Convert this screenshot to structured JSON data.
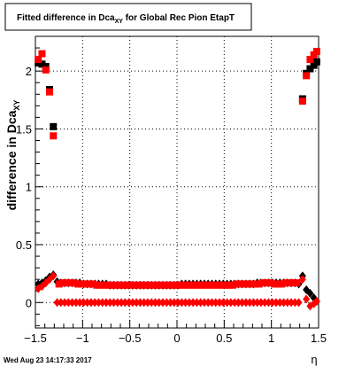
{
  "title": {
    "main": "Fitted difference in Dca",
    "sub": "XY",
    "rest": " for Global Rec Pion EtapT"
  },
  "footer": {
    "timestamp": "Wed Aug 23 14:17:33 2017"
  },
  "axes": {
    "xlabel": "η",
    "ylabel_main": "difference in Dca",
    "ylabel_sub": "XY"
  },
  "colors": {
    "black_series": "#000000",
    "red_series": "#ff0000",
    "grid": "#000000"
  },
  "chart_data": {
    "type": "scatter",
    "xlim": [
      -1.5,
      1.5
    ],
    "ylim": [
      -0.22,
      2.3
    ],
    "grid": true,
    "x_ticks": [
      {
        "v": -1.5,
        "label": "−1.5"
      },
      {
        "v": -1,
        "label": "−1"
      },
      {
        "v": -0.5,
        "label": "−0.5"
      },
      {
        "v": 0,
        "label": "0"
      },
      {
        "v": 0.5,
        "label": "0.5"
      },
      {
        "v": 1,
        "label": "1"
      },
      {
        "v": 1.5,
        "label": "1.5"
      }
    ],
    "y_ticks": [
      {
        "v": 0,
        "label": "0"
      },
      {
        "v": 0.5,
        "label": "0.5"
      },
      {
        "v": 1,
        "label": "1"
      },
      {
        "v": 1.5,
        "label": "1.5"
      },
      {
        "v": 2,
        "label": "2"
      }
    ],
    "series": [
      {
        "marker": "square",
        "color": "#000000",
        "points": [
          [
            -1.47,
            2.07
          ],
          [
            -1.43,
            2.06
          ],
          [
            -1.39,
            2.04
          ],
          [
            -1.35,
            1.84
          ],
          [
            -1.31,
            1.52
          ],
          [
            1.33,
            1.76
          ],
          [
            1.37,
            1.98
          ],
          [
            1.41,
            2.02
          ],
          [
            1.45,
            2.05
          ],
          [
            1.48,
            2.08
          ]
        ]
      },
      {
        "marker": "square",
        "color": "#ff0000",
        "points": [
          [
            -1.47,
            2.1
          ],
          [
            -1.43,
            2.15
          ],
          [
            -1.39,
            2.01
          ],
          [
            -1.35,
            1.82
          ],
          [
            -1.31,
            1.44
          ],
          [
            1.33,
            1.74
          ],
          [
            1.37,
            1.96
          ],
          [
            1.41,
            2.1
          ],
          [
            1.45,
            2.14
          ],
          [
            1.48,
            2.17
          ]
        ]
      },
      {
        "marker": "diamond",
        "color": "#000000",
        "points": [
          [
            -1.47,
            0.16
          ],
          [
            -1.43,
            0.17
          ],
          [
            -1.39,
            0.19
          ],
          [
            -1.35,
            0.22
          ],
          [
            -1.31,
            0.24
          ],
          [
            -1.27,
            0.18
          ],
          [
            -1.23,
            0.17
          ],
          [
            -1.19,
            0.17
          ],
          [
            -1.15,
            0.17
          ],
          [
            -1.11,
            0.17
          ],
          [
            -1.07,
            0.17
          ],
          [
            -1.03,
            0.17
          ],
          [
            -0.99,
            0.16
          ],
          [
            -0.95,
            0.16
          ],
          [
            -0.91,
            0.16
          ],
          [
            -0.87,
            0.16
          ],
          [
            -0.83,
            0.16
          ],
          [
            -0.79,
            0.16
          ],
          [
            -0.75,
            0.16
          ],
          [
            -0.71,
            0.15
          ],
          [
            -0.67,
            0.15
          ],
          [
            -0.63,
            0.15
          ],
          [
            -0.59,
            0.15
          ],
          [
            -0.55,
            0.15
          ],
          [
            -0.51,
            0.15
          ],
          [
            -0.47,
            0.15
          ],
          [
            -0.43,
            0.15
          ],
          [
            -0.39,
            0.15
          ],
          [
            -0.35,
            0.15
          ],
          [
            -0.31,
            0.15
          ],
          [
            -0.27,
            0.15
          ],
          [
            -0.23,
            0.15
          ],
          [
            -0.19,
            0.15
          ],
          [
            -0.15,
            0.15
          ],
          [
            -0.11,
            0.15
          ],
          [
            -0.07,
            0.15
          ],
          [
            -0.03,
            0.15
          ],
          [
            0.01,
            0.15
          ],
          [
            0.05,
            0.16
          ],
          [
            0.09,
            0.16
          ],
          [
            0.13,
            0.16
          ],
          [
            0.17,
            0.16
          ],
          [
            0.21,
            0.16
          ],
          [
            0.25,
            0.16
          ],
          [
            0.29,
            0.16
          ],
          [
            0.33,
            0.16
          ],
          [
            0.37,
            0.16
          ],
          [
            0.41,
            0.16
          ],
          [
            0.45,
            0.16
          ],
          [
            0.49,
            0.16
          ],
          [
            0.53,
            0.16
          ],
          [
            0.57,
            0.16
          ],
          [
            0.61,
            0.16
          ],
          [
            0.65,
            0.16
          ],
          [
            0.69,
            0.16
          ],
          [
            0.73,
            0.16
          ],
          [
            0.77,
            0.16
          ],
          [
            0.81,
            0.16
          ],
          [
            0.85,
            0.17
          ],
          [
            0.89,
            0.17
          ],
          [
            0.93,
            0.17
          ],
          [
            0.97,
            0.17
          ],
          [
            1.01,
            0.17
          ],
          [
            1.05,
            0.17
          ],
          [
            1.09,
            0.17
          ],
          [
            1.13,
            0.17
          ],
          [
            1.17,
            0.17
          ],
          [
            1.21,
            0.17
          ],
          [
            1.25,
            0.17
          ],
          [
            1.29,
            0.16
          ],
          [
            1.33,
            0.23
          ],
          [
            1.37,
            0.11
          ],
          [
            1.41,
            0.08
          ],
          [
            1.45,
            0.04
          ],
          [
            1.48,
            0.01
          ]
        ]
      },
      {
        "marker": "diamond",
        "color": "#ff0000",
        "points": [
          [
            -1.47,
            0.12
          ],
          [
            -1.43,
            0.14
          ],
          [
            -1.39,
            0.17
          ],
          [
            -1.35,
            0.2
          ],
          [
            -1.31,
            0.23
          ],
          [
            -1.27,
            0.0
          ],
          [
            -1.23,
            0.0
          ],
          [
            -1.19,
            0.0
          ],
          [
            -1.15,
            0.0
          ],
          [
            -1.11,
            0.0
          ],
          [
            -1.07,
            0.0
          ],
          [
            -1.03,
            0.0
          ],
          [
            -0.99,
            0.0
          ],
          [
            -0.95,
            0.0
          ],
          [
            -0.91,
            0.0
          ],
          [
            -0.87,
            0.0
          ],
          [
            -0.83,
            0.0
          ],
          [
            -0.79,
            0.0
          ],
          [
            -0.75,
            0.0
          ],
          [
            -0.71,
            0.0
          ],
          [
            -0.67,
            0.0
          ],
          [
            -0.63,
            0.0
          ],
          [
            -0.59,
            0.0
          ],
          [
            -0.55,
            0.0
          ],
          [
            -0.51,
            0.0
          ],
          [
            -0.47,
            0.0
          ],
          [
            -0.43,
            0.0
          ],
          [
            -0.39,
            0.0
          ],
          [
            -0.35,
            0.0
          ],
          [
            -0.31,
            0.0
          ],
          [
            -0.27,
            0.0
          ],
          [
            -0.23,
            0.0
          ],
          [
            -0.19,
            0.0
          ],
          [
            -0.15,
            0.0
          ],
          [
            -0.11,
            0.0
          ],
          [
            -0.07,
            0.0
          ],
          [
            -0.03,
            0.0
          ],
          [
            0.01,
            0.0
          ],
          [
            0.05,
            0.0
          ],
          [
            0.09,
            0.0
          ],
          [
            0.13,
            0.0
          ],
          [
            0.17,
            0.0
          ],
          [
            0.21,
            0.0
          ],
          [
            0.25,
            0.0
          ],
          [
            0.29,
            0.0
          ],
          [
            0.33,
            0.0
          ],
          [
            0.37,
            0.0
          ],
          [
            0.41,
            0.0
          ],
          [
            0.45,
            0.0
          ],
          [
            0.49,
            0.0
          ],
          [
            0.53,
            0.0
          ],
          [
            0.57,
            0.0
          ],
          [
            0.61,
            0.0
          ],
          [
            0.65,
            0.0
          ],
          [
            0.69,
            0.0
          ],
          [
            0.73,
            0.0
          ],
          [
            0.77,
            0.0
          ],
          [
            0.81,
            0.0
          ],
          [
            0.85,
            0.0
          ],
          [
            0.89,
            0.0
          ],
          [
            0.93,
            0.0
          ],
          [
            0.97,
            0.0
          ],
          [
            1.01,
            0.0
          ],
          [
            1.05,
            0.0
          ],
          [
            1.09,
            0.0
          ],
          [
            1.13,
            0.0
          ],
          [
            1.17,
            0.0
          ],
          [
            1.21,
            0.0
          ],
          [
            1.25,
            0.0
          ],
          [
            1.29,
            0.0
          ],
          [
            1.33,
            0.2
          ],
          [
            1.37,
            0.03
          ],
          [
            1.41,
            -0.03
          ],
          [
            1.45,
            -0.01
          ],
          [
            1.48,
            0.01
          ]
        ]
      },
      {
        "marker": "square",
        "color": "#ff0000",
        "points": [
          [
            -1.25,
            0.16
          ],
          [
            -1.21,
            0.17
          ],
          [
            -1.17,
            0.17
          ],
          [
            -1.13,
            0.17
          ],
          [
            -1.09,
            0.17
          ],
          [
            -1.05,
            0.16
          ],
          [
            -1.01,
            0.16
          ],
          [
            -0.97,
            0.16
          ],
          [
            -0.93,
            0.16
          ],
          [
            -0.89,
            0.16
          ],
          [
            -0.85,
            0.15
          ],
          [
            -0.81,
            0.15
          ],
          [
            -0.77,
            0.15
          ],
          [
            -0.73,
            0.15
          ],
          [
            -0.69,
            0.15
          ],
          [
            -0.65,
            0.15
          ],
          [
            -0.61,
            0.15
          ],
          [
            -0.57,
            0.15
          ],
          [
            -0.53,
            0.15
          ],
          [
            -0.49,
            0.15
          ],
          [
            -0.45,
            0.15
          ],
          [
            -0.41,
            0.15
          ],
          [
            -0.37,
            0.15
          ],
          [
            -0.33,
            0.15
          ],
          [
            -0.29,
            0.15
          ],
          [
            -0.25,
            0.15
          ],
          [
            -0.21,
            0.15
          ],
          [
            -0.17,
            0.15
          ],
          [
            -0.13,
            0.15
          ],
          [
            -0.09,
            0.15
          ],
          [
            -0.05,
            0.15
          ],
          [
            -0.01,
            0.15
          ],
          [
            0.03,
            0.15
          ],
          [
            0.07,
            0.15
          ],
          [
            0.11,
            0.15
          ],
          [
            0.15,
            0.15
          ],
          [
            0.19,
            0.15
          ],
          [
            0.23,
            0.15
          ],
          [
            0.27,
            0.15
          ],
          [
            0.31,
            0.15
          ],
          [
            0.35,
            0.15
          ],
          [
            0.39,
            0.15
          ],
          [
            0.43,
            0.15
          ],
          [
            0.47,
            0.15
          ],
          [
            0.51,
            0.15
          ],
          [
            0.55,
            0.15
          ],
          [
            0.59,
            0.15
          ],
          [
            0.63,
            0.16
          ],
          [
            0.67,
            0.16
          ],
          [
            0.71,
            0.16
          ],
          [
            0.75,
            0.16
          ],
          [
            0.79,
            0.16
          ],
          [
            0.83,
            0.16
          ],
          [
            0.87,
            0.16
          ],
          [
            0.91,
            0.17
          ],
          [
            0.95,
            0.17
          ],
          [
            0.99,
            0.17
          ],
          [
            1.03,
            0.16
          ],
          [
            1.07,
            0.16
          ],
          [
            1.11,
            0.16
          ],
          [
            1.15,
            0.17
          ],
          [
            1.19,
            0.17
          ],
          [
            1.23,
            0.17
          ],
          [
            1.27,
            0.17
          ]
        ]
      }
    ]
  }
}
